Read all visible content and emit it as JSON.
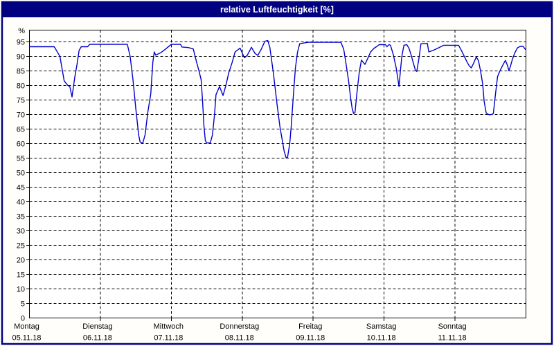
{
  "window": {
    "title": "relative Luftfeuchtigkeit [%]",
    "title_bar_color": "#000080",
    "title_text_color": "#ffffff",
    "frame_color": "#000080",
    "content_background": "#fffefa",
    "plot_background": "#ffffff"
  },
  "chart_data": {
    "type": "line",
    "title": "relative Luftfeuchtigkeit [%]",
    "xlabel": "",
    "ylabel": "%",
    "ylim": [
      0,
      99
    ],
    "yticks": [
      0,
      5,
      10,
      15,
      20,
      25,
      30,
      35,
      40,
      45,
      50,
      55,
      60,
      65,
      70,
      75,
      80,
      85,
      90,
      95
    ],
    "grid": "dashed",
    "grid_color": "#000000",
    "legend": "none",
    "x_unit": "days, 0 = Montag 05.11.18 00:00",
    "categories": [
      {
        "label": "Montag",
        "date": "05.11.18"
      },
      {
        "label": "Dienstag",
        "date": "06.11.18"
      },
      {
        "label": "Mittwoch",
        "date": "07.11.18"
      },
      {
        "label": "Donnerstag",
        "date": "08.11.18"
      },
      {
        "label": "Freitag",
        "date": "09.11.18"
      },
      {
        "label": "Samstag",
        "date": "10.11.18"
      },
      {
        "label": "Sonntag",
        "date": "11.11.18"
      }
    ],
    "series": [
      {
        "name": "relative Luftfeuchtigkeit [%]",
        "color": "#0000cc",
        "points": [
          [
            0.0,
            93.3
          ],
          [
            0.35,
            93.3
          ],
          [
            0.43,
            90.0
          ],
          [
            0.49,
            81.5
          ],
          [
            0.54,
            80.0
          ],
          [
            0.57,
            79.5
          ],
          [
            0.6,
            76.0
          ],
          [
            0.64,
            83.0
          ],
          [
            0.67,
            87.0
          ],
          [
            0.7,
            92.0
          ],
          [
            0.73,
            93.3
          ],
          [
            0.82,
            93.3
          ],
          [
            0.85,
            94.1
          ],
          [
            1.38,
            94.1
          ],
          [
            1.42,
            90.0
          ],
          [
            1.46,
            82.0
          ],
          [
            1.5,
            72.0
          ],
          [
            1.54,
            63.0
          ],
          [
            1.56,
            60.5
          ],
          [
            1.6,
            60.3
          ],
          [
            1.63,
            63.0
          ],
          [
            1.67,
            71.0
          ],
          [
            1.71,
            77.0
          ],
          [
            1.74,
            88.0
          ],
          [
            1.76,
            91.5
          ],
          [
            1.78,
            90.4
          ],
          [
            1.85,
            91.2
          ],
          [
            1.91,
            92.3
          ],
          [
            1.97,
            93.5
          ],
          [
            2.0,
            94.1
          ],
          [
            2.13,
            94.1
          ],
          [
            2.15,
            93.2
          ],
          [
            2.24,
            93.0
          ],
          [
            2.31,
            92.5
          ],
          [
            2.35,
            88.6
          ],
          [
            2.39,
            85.0
          ],
          [
            2.42,
            82.0
          ],
          [
            2.44,
            75.0
          ],
          [
            2.46,
            66.0
          ],
          [
            2.48,
            61.0
          ],
          [
            2.5,
            60.2
          ],
          [
            2.55,
            60.2
          ],
          [
            2.58,
            63.0
          ],
          [
            2.61,
            70.0
          ],
          [
            2.63,
            76.8
          ],
          [
            2.68,
            79.6
          ],
          [
            2.73,
            76.5
          ],
          [
            2.77,
            80.0
          ],
          [
            2.81,
            84.3
          ],
          [
            2.86,
            88.0
          ],
          [
            2.9,
            91.5
          ],
          [
            2.97,
            92.8
          ],
          [
            3.03,
            89.5
          ],
          [
            3.07,
            90.3
          ],
          [
            3.13,
            93.1
          ],
          [
            3.18,
            91.0
          ],
          [
            3.22,
            90.3
          ],
          [
            3.27,
            92.5
          ],
          [
            3.32,
            95.2
          ],
          [
            3.36,
            95.4
          ],
          [
            3.39,
            93.0
          ],
          [
            3.44,
            84.0
          ],
          [
            3.49,
            73.6
          ],
          [
            3.53,
            66.0
          ],
          [
            3.56,
            61.8
          ],
          [
            3.59,
            57.5
          ],
          [
            3.62,
            55.0
          ],
          [
            3.64,
            55.3
          ],
          [
            3.67,
            60.0
          ],
          [
            3.69,
            65.8
          ],
          [
            3.72,
            76.0
          ],
          [
            3.75,
            86.0
          ],
          [
            3.78,
            91.5
          ],
          [
            3.81,
            94.3
          ],
          [
            3.93,
            94.8
          ],
          [
            4.39,
            94.8
          ],
          [
            4.43,
            92.5
          ],
          [
            4.46,
            88.0
          ],
          [
            4.5,
            81.5
          ],
          [
            4.53,
            75.3
          ],
          [
            4.55,
            72.0
          ],
          [
            4.57,
            70.3
          ],
          [
            4.59,
            70.6
          ],
          [
            4.62,
            78.0
          ],
          [
            4.65,
            84.5
          ],
          [
            4.68,
            88.7
          ],
          [
            4.71,
            87.8
          ],
          [
            4.73,
            87.2
          ],
          [
            4.77,
            89.3
          ],
          [
            4.81,
            91.5
          ],
          [
            4.86,
            92.8
          ],
          [
            4.9,
            93.4
          ],
          [
            4.93,
            94.0
          ],
          [
            5.02,
            94.0
          ],
          [
            5.04,
            93.3
          ],
          [
            5.07,
            94.0
          ],
          [
            5.09,
            93.8
          ],
          [
            5.13,
            90.5
          ],
          [
            5.17,
            86.0
          ],
          [
            5.21,
            79.6
          ],
          [
            5.23,
            85.0
          ],
          [
            5.25,
            90.0
          ],
          [
            5.28,
            93.8
          ],
          [
            5.32,
            94.0
          ],
          [
            5.35,
            92.8
          ],
          [
            5.38,
            90.5
          ],
          [
            5.41,
            87.9
          ],
          [
            5.44,
            85.3
          ],
          [
            5.46,
            84.8
          ],
          [
            5.49,
            89.0
          ],
          [
            5.52,
            94.3
          ],
          [
            5.61,
            94.4
          ],
          [
            5.63,
            91.5
          ],
          [
            5.69,
            92.0
          ],
          [
            5.75,
            92.7
          ],
          [
            5.81,
            93.4
          ],
          [
            5.84,
            93.8
          ],
          [
            6.05,
            93.8
          ],
          [
            6.09,
            92.0
          ],
          [
            6.13,
            90.0
          ],
          [
            6.17,
            88.0
          ],
          [
            6.2,
            86.7
          ],
          [
            6.23,
            86.0
          ],
          [
            6.26,
            87.5
          ],
          [
            6.3,
            89.8
          ],
          [
            6.33,
            88.5
          ],
          [
            6.36,
            85.0
          ],
          [
            6.39,
            80.5
          ],
          [
            6.41,
            74.5
          ],
          [
            6.44,
            70.5
          ],
          [
            6.48,
            69.9
          ],
          [
            6.52,
            70.0
          ],
          [
            6.54,
            70.3
          ],
          [
            6.57,
            77.0
          ],
          [
            6.6,
            83.0
          ],
          [
            6.63,
            84.8
          ],
          [
            6.67,
            86.8
          ],
          [
            6.71,
            88.6
          ],
          [
            6.74,
            86.8
          ],
          [
            6.76,
            85.0
          ],
          [
            6.78,
            86.5
          ],
          [
            6.81,
            89.0
          ],
          [
            6.84,
            91.0
          ],
          [
            6.88,
            92.9
          ],
          [
            6.92,
            93.4
          ],
          [
            6.96,
            93.4
          ],
          [
            6.99,
            92.4
          ]
        ]
      }
    ]
  }
}
